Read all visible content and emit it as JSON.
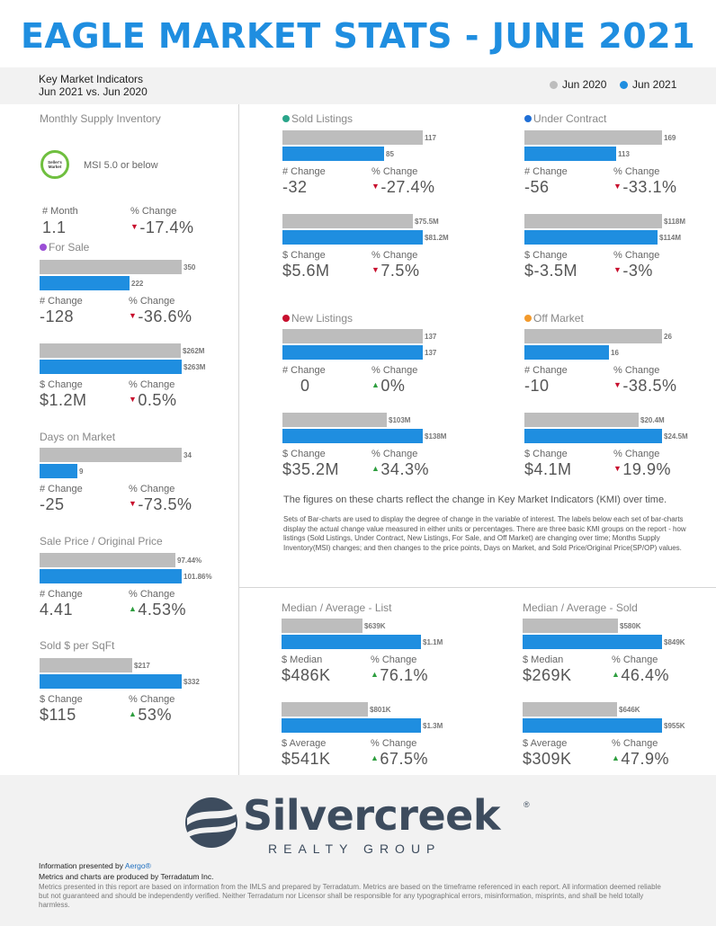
{
  "header": {
    "title": "EAGLE MARKET STATS - JUNE 2021",
    "kmi_line1": "Key Market Indicators",
    "kmi_line2": "Jun 2021 vs. Jun 2020",
    "legend_2020": "Jun 2020",
    "legend_2021": "Jun 2021"
  },
  "colors": {
    "accent": "#1f8ee0",
    "prior": "#bdbdbd",
    "down": "#c8102e",
    "up": "#2e9e3f"
  },
  "msi": {
    "title": "Monthly Supply Inventory",
    "badge_line1": "Seller's",
    "badge_line2": "Market",
    "text": "MSI 5.0 or below",
    "lbl1": "# Month",
    "val1": "1.1",
    "lbl2": "% Change",
    "val2": "-17.4%"
  },
  "desc": {
    "title": "The figures on these charts reflect the change in Key Market Indicators (KMI) over time.",
    "body": "Sets of Bar-charts are used to display the degree of change in the variable of interest. The labels below each set of bar-charts display the actual change value measured in either units or percentages. There are three basic KMI groups on the report - how listings (Sold Listings, Under Contract, New Listings, For Sale, and Off Market) are changing over time; Months Supply Inventory(MSI) changes; and then changes to the price points, Days on Market, and Sold Price/Original Price(SP/OP) values."
  },
  "footer": {
    "presented": "Information presented by ",
    "aergo": "Aergo®",
    "produced": "Metrics and charts are produced by Terradatum Inc.",
    "disclaimer": "Metrics presented in this report are based on information from the IMLS and prepared by Terradatum. Metrics are based on the timeframe referenced in each report. All information deemed reliable but not guaranteed and should be independently verified. Neither Terradatum nor Licensor shall be responsible for any typographical errors, misinformation, misprints, and shall be held totally harmless.",
    "logo_word": "Silvercreek",
    "logo_sub": "REALTY GROUP",
    "logo_reg": "®"
  },
  "chart_data": [
    {
      "type": "bar",
      "title": "For Sale",
      "dot": "#9b4fd6",
      "series": [
        {
          "name": "Jun 2020",
          "values": [
            350
          ],
          "labels": [
            "350"
          ]
        },
        {
          "name": "Jun 2021",
          "values": [
            222
          ],
          "labels": [
            "222"
          ]
        }
      ],
      "lbl1": "# Change",
      "val1": "-128",
      "lbl2": "% Change",
      "val2": "-36.6%",
      "dir": "down"
    },
    {
      "type": "bar",
      "title": "",
      "series": [
        {
          "name": "Jun 2020",
          "values": [
            262
          ],
          "labels": [
            "$262M"
          ]
        },
        {
          "name": "Jun 2021",
          "values": [
            263
          ],
          "labels": [
            "$263M"
          ]
        }
      ],
      "lbl1": "$ Change",
      "val1": "$1.2M",
      "lbl2": "% Change",
      "val2": "0.5%",
      "dir": "down"
    },
    {
      "type": "bar",
      "title": "Days on Market",
      "series": [
        {
          "name": "Jun 2020",
          "values": [
            34
          ],
          "labels": [
            "34"
          ]
        },
        {
          "name": "Jun 2021",
          "values": [
            9
          ],
          "labels": [
            "9"
          ]
        }
      ],
      "lbl1": "# Change",
      "val1": "-25",
      "lbl2": "% Change",
      "val2": "-73.5%",
      "dir": "down"
    },
    {
      "type": "bar",
      "title": "Sale Price / Original Price",
      "series": [
        {
          "name": "Jun 2020",
          "values": [
            97.44
          ],
          "labels": [
            "97.44%"
          ]
        },
        {
          "name": "Jun 2021",
          "values": [
            101.86
          ],
          "labels": [
            "101.86%"
          ]
        }
      ],
      "lbl1": "# Change",
      "val1": "4.41",
      "lbl2": "% Change",
      "val2": "4.53%",
      "dir": "up"
    },
    {
      "type": "bar",
      "title": "Sold $ per SqFt",
      "series": [
        {
          "name": "Jun 2020",
          "values": [
            217
          ],
          "labels": [
            "$217"
          ]
        },
        {
          "name": "Jun 2021",
          "values": [
            332
          ],
          "labels": [
            "$332"
          ]
        }
      ],
      "lbl1": "$ Change",
      "val1": "$115",
      "lbl2": "% Change",
      "val2": "53%",
      "dir": "up"
    },
    {
      "type": "bar",
      "title": "Sold Listings",
      "dot": "#2aa58a",
      "series": [
        {
          "name": "Jun 2020",
          "values": [
            117
          ],
          "labels": [
            "117"
          ]
        },
        {
          "name": "Jun 2021",
          "values": [
            85
          ],
          "labels": [
            "85"
          ]
        }
      ],
      "lbl1": "# Change",
      "val1": "-32",
      "lbl2": "% Change",
      "val2": "-27.4%",
      "dir": "down"
    },
    {
      "type": "bar",
      "title": "",
      "series": [
        {
          "name": "Jun 2020",
          "values": [
            75.5
          ],
          "labels": [
            "$75.5M"
          ]
        },
        {
          "name": "Jun 2021",
          "values": [
            81.2
          ],
          "labels": [
            "$81.2M"
          ]
        }
      ],
      "lbl1": "$ Change",
      "val1": "$5.6M",
      "lbl2": "% Change",
      "val2": "7.5%",
      "dir": "down"
    },
    {
      "type": "bar",
      "title": "Under Contract",
      "dot": "#1f6fd6",
      "series": [
        {
          "name": "Jun 2020",
          "values": [
            169
          ],
          "labels": [
            "169"
          ]
        },
        {
          "name": "Jun 2021",
          "values": [
            113
          ],
          "labels": [
            "113"
          ]
        }
      ],
      "lbl1": "# Change",
      "val1": "-56",
      "lbl2": "% Change",
      "val2": "-33.1%",
      "dir": "down"
    },
    {
      "type": "bar",
      "title": "",
      "series": [
        {
          "name": "Jun 2020",
          "values": [
            118
          ],
          "labels": [
            "$118M"
          ]
        },
        {
          "name": "Jun 2021",
          "values": [
            114
          ],
          "labels": [
            "$114M"
          ]
        }
      ],
      "lbl1": "$ Change",
      "val1": "$-3.5M",
      "lbl2": "% Change",
      "val2": "-3%",
      "dir": "down"
    },
    {
      "type": "bar",
      "title": "New Listings",
      "dot": "#c8102e",
      "series": [
        {
          "name": "Jun 2020",
          "values": [
            137
          ],
          "labels": [
            "137"
          ]
        },
        {
          "name": "Jun 2021",
          "values": [
            137
          ],
          "labels": [
            "137"
          ]
        }
      ],
      "lbl1": "# Change",
      "val1": "0",
      "lbl2": "% Change",
      "val2": "0%",
      "dir": "up"
    },
    {
      "type": "bar",
      "title": "",
      "series": [
        {
          "name": "Jun 2020",
          "values": [
            103
          ],
          "labels": [
            "$103M"
          ]
        },
        {
          "name": "Jun 2021",
          "values": [
            138
          ],
          "labels": [
            "$138M"
          ]
        }
      ],
      "lbl1": "$ Change",
      "val1": "$35.2M",
      "lbl2": "% Change",
      "val2": "34.3%",
      "dir": "up"
    },
    {
      "type": "bar",
      "title": "Off Market",
      "dot": "#f39a2c",
      "series": [
        {
          "name": "Jun 2020",
          "values": [
            26
          ],
          "labels": [
            "26"
          ]
        },
        {
          "name": "Jun 2021",
          "values": [
            16
          ],
          "labels": [
            "16"
          ]
        }
      ],
      "lbl1": "# Change",
      "val1": "-10",
      "lbl2": "% Change",
      "val2": "-38.5%",
      "dir": "down"
    },
    {
      "type": "bar",
      "title": "",
      "series": [
        {
          "name": "Jun 2020",
          "values": [
            20.4
          ],
          "labels": [
            "$20.4M"
          ]
        },
        {
          "name": "Jun 2021",
          "values": [
            24.5
          ],
          "labels": [
            "$24.5M"
          ]
        }
      ],
      "lbl1": "$ Change",
      "val1": "$4.1M",
      "lbl2": "% Change",
      "val2": "19.9%",
      "dir": "down"
    },
    {
      "type": "bar",
      "title": "Median / Average - List",
      "series": [
        {
          "name": "Jun 2020",
          "values": [
            639
          ],
          "labels": [
            "$639K"
          ]
        },
        {
          "name": "Jun 2021",
          "values": [
            1100
          ],
          "labels": [
            "$1.1M"
          ]
        }
      ],
      "lbl1": "$ Median",
      "val1": "$486K",
      "lbl2": "% Change",
      "val2": "76.1%",
      "dir": "up"
    },
    {
      "type": "bar",
      "title": "",
      "series": [
        {
          "name": "Jun 2020",
          "values": [
            801
          ],
          "labels": [
            "$801K"
          ]
        },
        {
          "name": "Jun 2021",
          "values": [
            1300
          ],
          "labels": [
            "$1.3M"
          ]
        }
      ],
      "lbl1": "$ Average",
      "val1": "$541K",
      "lbl2": "% Change",
      "val2": "67.5%",
      "dir": "up"
    },
    {
      "type": "bar",
      "title": "Median / Average - Sold",
      "series": [
        {
          "name": "Jun 2020",
          "values": [
            580
          ],
          "labels": [
            "$580K"
          ]
        },
        {
          "name": "Jun 2021",
          "values": [
            849
          ],
          "labels": [
            "$849K"
          ]
        }
      ],
      "lbl1": "$ Median",
      "val1": "$269K",
      "lbl2": "% Change",
      "val2": "46.4%",
      "dir": "up"
    },
    {
      "type": "bar",
      "title": "",
      "series": [
        {
          "name": "Jun 2020",
          "values": [
            646
          ],
          "labels": [
            "$646K"
          ]
        },
        {
          "name": "Jun 2021",
          "values": [
            955
          ],
          "labels": [
            "$955K"
          ]
        }
      ],
      "lbl1": "$ Average",
      "val1": "$309K",
      "lbl2": "% Change",
      "val2": "47.9%",
      "dir": "up"
    }
  ]
}
